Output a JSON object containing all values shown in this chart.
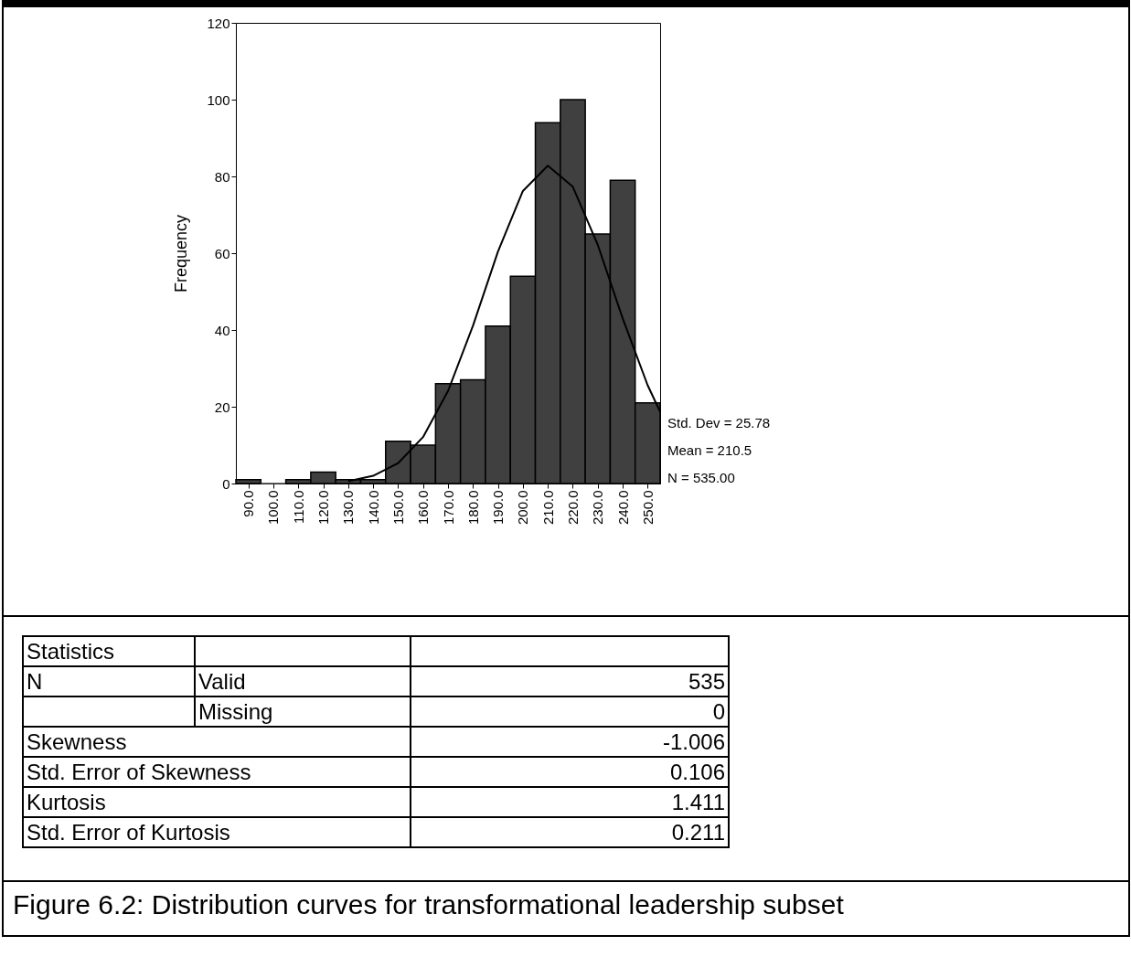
{
  "chart_data": [
    {
      "type": "histogram",
      "ylabel": "Frequency",
      "bins": [
        85,
        95,
        105,
        115,
        125,
        135,
        145,
        155,
        165,
        175,
        185,
        195,
        205,
        215,
        225,
        235,
        245,
        255
      ],
      "values": [
        1,
        0,
        1,
        3,
        1,
        1,
        11,
        10,
        26,
        27,
        41,
        54,
        94,
        100,
        65,
        79,
        21
      ],
      "color": "#404040",
      "series": [
        {
          "type": "line",
          "color": "#000000",
          "x": [
            130,
            140,
            150,
            160,
            170,
            180,
            190,
            200,
            210,
            220,
            230,
            240,
            250,
            255
          ],
          "values": [
            0.6,
            2.0,
            5.3,
            12.1,
            24.1,
            41.1,
            60.4,
            76.2,
            82.8,
            77.3,
            62.2,
            43.0,
            25.6,
            18.7
          ]
        }
      ],
      "xlim": [
        85,
        255
      ],
      "xticks": [
        {
          "value": 90,
          "label": "90.0"
        },
        {
          "value": 100,
          "label": "100.0"
        },
        {
          "value": 110,
          "label": "110.0"
        },
        {
          "value": 120,
          "label": "120.0"
        },
        {
          "value": 130,
          "label": "130.0"
        },
        {
          "value": 140,
          "label": "140.0"
        },
        {
          "value": 150,
          "label": "150.0"
        },
        {
          "value": 160,
          "label": "160.0"
        },
        {
          "value": 170,
          "label": "170.0"
        },
        {
          "value": 180,
          "label": "180.0"
        },
        {
          "value": 190,
          "label": "190.0"
        },
        {
          "value": 200,
          "label": "200.0"
        },
        {
          "value": 210,
          "label": "210.0"
        },
        {
          "value": 220,
          "label": "220.0"
        },
        {
          "value": 230,
          "label": "230.0"
        },
        {
          "value": 240,
          "label": "240.0"
        },
        {
          "value": 250,
          "label": "250.0"
        }
      ],
      "ylim": [
        0,
        120
      ],
      "yticks": [
        0,
        20,
        40,
        60,
        80,
        100,
        120
      ],
      "grid": false,
      "annotations": [
        "Std. Dev = 25.78",
        "Mean = 210.5",
        "N = 535.00",
        "Figure 6.2: Distribution curves for transformational leadership subset"
      ]
    },
    {
      "type": "other",
      "annotations": [
        "Statistics",
        "N",
        "Valid",
        "535",
        "Missing",
        "0",
        "Skewness",
        "-1.006",
        "Std. Error of Skewness",
        "0.106",
        "Kurtosis",
        "1.411",
        "Std. Error of Kurtosis",
        "0.211"
      ]
    }
  ]
}
